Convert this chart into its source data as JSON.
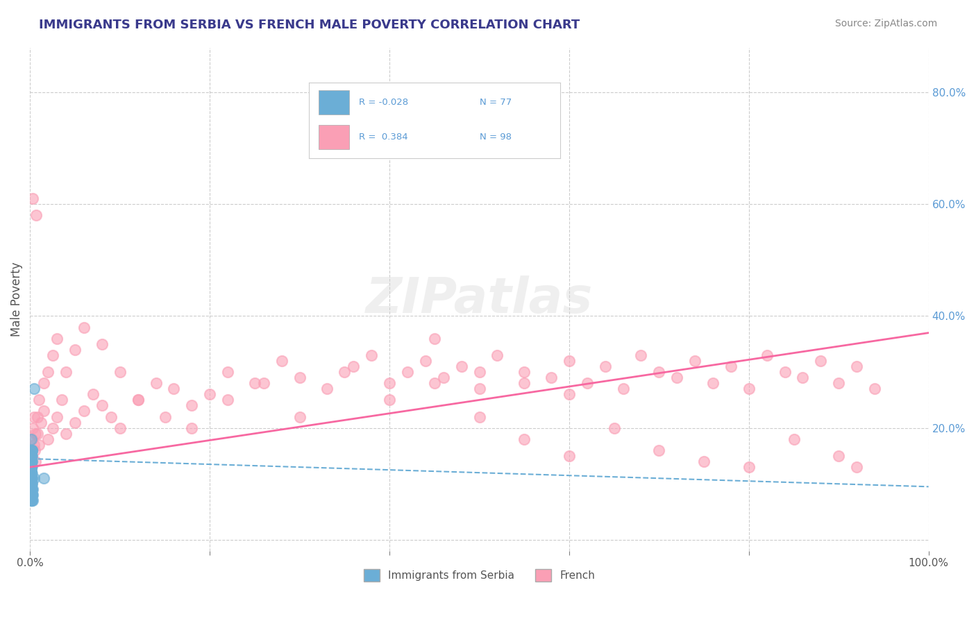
{
  "title": "IMMIGRANTS FROM SERBIA VS FRENCH MALE POVERTY CORRELATION CHART",
  "source_text": "Source: ZipAtlas.com",
  "xlabel": "",
  "ylabel": "Male Poverty",
  "xlim": [
    0,
    1.0
  ],
  "ylim": [
    -0.02,
    0.88
  ],
  "x_ticks": [
    0.0,
    0.2,
    0.4,
    0.6,
    0.8,
    1.0
  ],
  "x_tick_labels": [
    "0.0%",
    "",
    "",
    "",
    "",
    "100.0%"
  ],
  "y_ticks": [
    0.0,
    0.2,
    0.4,
    0.6,
    0.8
  ],
  "y_tick_labels": [
    "",
    "20.0%",
    "40.0%",
    "60.0%",
    "80.0%"
  ],
  "legend_r1": "R = -0.028",
  "legend_n1": "N = 77",
  "legend_r2": "R =  0.384",
  "legend_n2": "N = 98",
  "color_blue": "#6baed6",
  "color_pink": "#fa9fb5",
  "color_blue_line": "#6baed6",
  "color_pink_line": "#f768a1",
  "watermark": "ZIPatlas",
  "background_color": "#ffffff",
  "grid_color": "#cccccc",
  "title_color": "#3a3a8c",
  "axis_label_color": "#555555",
  "blue_scatter_x": [
    0.001,
    0.001,
    0.001,
    0.002,
    0.001,
    0.001,
    0.003,
    0.002,
    0.001,
    0.001,
    0.001,
    0.002,
    0.001,
    0.001,
    0.002,
    0.001,
    0.001,
    0.001,
    0.001,
    0.002,
    0.001,
    0.001,
    0.001,
    0.001,
    0.001,
    0.003,
    0.002,
    0.001,
    0.001,
    0.001,
    0.002,
    0.001,
    0.001,
    0.001,
    0.001,
    0.001,
    0.001,
    0.002,
    0.001,
    0.001,
    0.001,
    0.001,
    0.001,
    0.002,
    0.001,
    0.001,
    0.001,
    0.001,
    0.004,
    0.001,
    0.002,
    0.001,
    0.001,
    0.001,
    0.003,
    0.001,
    0.001,
    0.001,
    0.001,
    0.001,
    0.002,
    0.001,
    0.001,
    0.001,
    0.001,
    0.001,
    0.004,
    0.001,
    0.001,
    0.001,
    0.001,
    0.001,
    0.001,
    0.002,
    0.001,
    0.015,
    0.001
  ],
  "blue_scatter_y": [
    0.15,
    0.12,
    0.1,
    0.08,
    0.18,
    0.14,
    0.09,
    0.11,
    0.13,
    0.07,
    0.16,
    0.1,
    0.12,
    0.09,
    0.08,
    0.11,
    0.14,
    0.13,
    0.1,
    0.15,
    0.07,
    0.12,
    0.09,
    0.11,
    0.13,
    0.08,
    0.16,
    0.1,
    0.12,
    0.14,
    0.09,
    0.11,
    0.08,
    0.13,
    0.15,
    0.1,
    0.12,
    0.07,
    0.14,
    0.09,
    0.11,
    0.13,
    0.08,
    0.16,
    0.1,
    0.12,
    0.14,
    0.09,
    0.11,
    0.13,
    0.08,
    0.15,
    0.1,
    0.12,
    0.07,
    0.14,
    0.09,
    0.11,
    0.13,
    0.08,
    0.16,
    0.1,
    0.12,
    0.14,
    0.09,
    0.11,
    0.27,
    0.13,
    0.08,
    0.15,
    0.1,
    0.12,
    0.07,
    0.14,
    0.09,
    0.11,
    0.13
  ],
  "pink_scatter_x": [
    0.001,
    0.002,
    0.003,
    0.004,
    0.005,
    0.006,
    0.008,
    0.01,
    0.012,
    0.015,
    0.02,
    0.025,
    0.03,
    0.035,
    0.04,
    0.05,
    0.06,
    0.07,
    0.08,
    0.09,
    0.1,
    0.12,
    0.14,
    0.16,
    0.18,
    0.2,
    0.22,
    0.25,
    0.28,
    0.3,
    0.33,
    0.36,
    0.38,
    0.4,
    0.42,
    0.44,
    0.46,
    0.48,
    0.5,
    0.52,
    0.55,
    0.58,
    0.6,
    0.62,
    0.64,
    0.66,
    0.68,
    0.7,
    0.72,
    0.74,
    0.76,
    0.78,
    0.8,
    0.82,
    0.84,
    0.86,
    0.88,
    0.9,
    0.92,
    0.94,
    0.004,
    0.006,
    0.008,
    0.01,
    0.015,
    0.02,
    0.025,
    0.03,
    0.04,
    0.05,
    0.06,
    0.08,
    0.1,
    0.12,
    0.15,
    0.18,
    0.22,
    0.26,
    0.3,
    0.35,
    0.4,
    0.45,
    0.5,
    0.55,
    0.6,
    0.65,
    0.7,
    0.75,
    0.8,
    0.85,
    0.9,
    0.92,
    0.003,
    0.007,
    0.45,
    0.5,
    0.55,
    0.6
  ],
  "pink_scatter_y": [
    0.15,
    0.18,
    0.2,
    0.22,
    0.16,
    0.14,
    0.19,
    0.17,
    0.21,
    0.23,
    0.18,
    0.2,
    0.22,
    0.25,
    0.19,
    0.21,
    0.23,
    0.26,
    0.24,
    0.22,
    0.2,
    0.25,
    0.28,
    0.27,
    0.24,
    0.26,
    0.3,
    0.28,
    0.32,
    0.29,
    0.27,
    0.31,
    0.33,
    0.28,
    0.3,
    0.32,
    0.29,
    0.31,
    0.27,
    0.33,
    0.3,
    0.29,
    0.32,
    0.28,
    0.31,
    0.27,
    0.33,
    0.3,
    0.29,
    0.32,
    0.28,
    0.31,
    0.27,
    0.33,
    0.3,
    0.29,
    0.32,
    0.28,
    0.31,
    0.27,
    0.17,
    0.19,
    0.22,
    0.25,
    0.28,
    0.3,
    0.33,
    0.36,
    0.3,
    0.34,
    0.38,
    0.35,
    0.3,
    0.25,
    0.22,
    0.2,
    0.25,
    0.28,
    0.22,
    0.3,
    0.25,
    0.28,
    0.22,
    0.18,
    0.15,
    0.2,
    0.16,
    0.14,
    0.13,
    0.18,
    0.15,
    0.13,
    0.61,
    0.58,
    0.36,
    0.3,
    0.28,
    0.26
  ],
  "blue_line_x": [
    0.0,
    1.0
  ],
  "blue_line_y": [
    0.145,
    0.095
  ],
  "pink_line_x": [
    0.0,
    1.0
  ],
  "pink_line_y": [
    0.13,
    0.37
  ]
}
